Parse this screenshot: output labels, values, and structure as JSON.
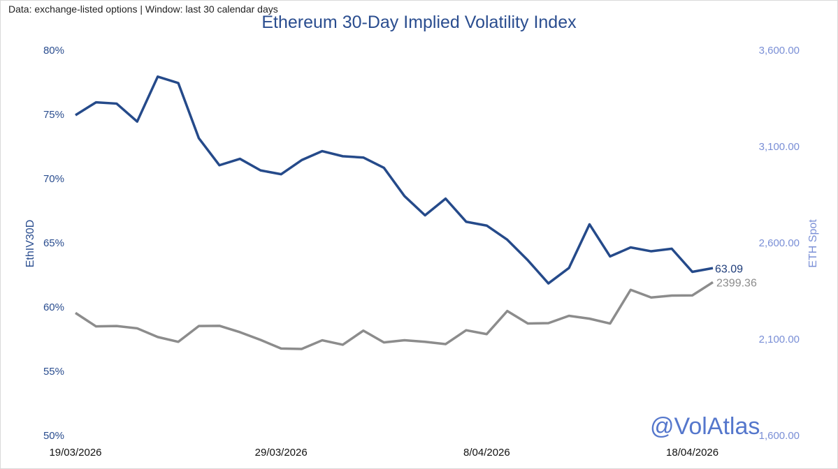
{
  "header": {
    "source_note": "Data: exchange-listed options | Window: last 30 calendar days"
  },
  "watermark": "@VolAtlas",
  "colors": {
    "iv_line": "#254a8a",
    "spot_line": "#8c8c8c",
    "left_axis": "#2a4d8f",
    "right_axis": "#7a8fd6"
  },
  "chart_data": {
    "type": "line",
    "title": "Ethereum 30-Day Implied Volatility Index",
    "x": [
      "19/03/2026",
      "20/03/2026",
      "21/03/2026",
      "22/03/2026",
      "23/03/2026",
      "24/03/2026",
      "25/03/2026",
      "26/03/2026",
      "27/03/2026",
      "28/03/2026",
      "29/03/2026",
      "30/03/2026",
      "31/03/2026",
      "1/04/2026",
      "2/04/2026",
      "3/04/2026",
      "4/04/2026",
      "5/04/2026",
      "6/04/2026",
      "7/04/2026",
      "8/04/2026",
      "9/04/2026",
      "10/04/2026",
      "11/04/2026",
      "12/04/2026",
      "13/04/2026",
      "14/04/2026",
      "15/04/2026",
      "16/04/2026",
      "17/04/2026",
      "18/04/2026",
      "19/04/2026"
    ],
    "x_ticks": [
      "19/03/2026",
      "29/03/2026",
      "8/04/2026",
      "18/04/2026"
    ],
    "y_left": {
      "label": "EthIV30D",
      "ylim": [
        50,
        80
      ],
      "ticks": [
        "50%",
        "55%",
        "60%",
        "65%",
        "70%",
        "75%",
        "80%"
      ]
    },
    "y_right": {
      "label": "ETH Spot",
      "ylim": [
        1600,
        3600
      ],
      "ticks": [
        "1,600.00",
        "2,100.00",
        "2,600.00",
        "3,100.00",
        "3,600.00"
      ]
    },
    "series": [
      {
        "name": "EthIV30D",
        "axis": "left",
        "values": [
          75.0,
          76.0,
          75.9,
          74.5,
          78.0,
          77.5,
          73.2,
          71.1,
          71.6,
          70.7,
          70.4,
          71.5,
          72.2,
          71.8,
          71.7,
          70.9,
          68.7,
          67.2,
          68.5,
          66.7,
          66.4,
          65.3,
          63.7,
          61.9,
          63.1,
          66.5,
          64.0,
          64.7,
          64.4,
          64.6,
          62.8,
          63.09
        ],
        "end_label": "63.09"
      },
      {
        "name": "ETH Spot",
        "axis": "right",
        "values": [
          2240,
          2170,
          2172,
          2160,
          2115,
          2090,
          2172,
          2173,
          2140,
          2100,
          2055,
          2053,
          2098,
          2075,
          2148,
          2087,
          2098,
          2090,
          2078,
          2150,
          2130,
          2250,
          2185,
          2187,
          2225,
          2210,
          2185,
          2360,
          2320,
          2330,
          2331,
          2399.36
        ],
        "end_label": "2399.36"
      }
    ],
    "grid": false,
    "legend": "none"
  }
}
